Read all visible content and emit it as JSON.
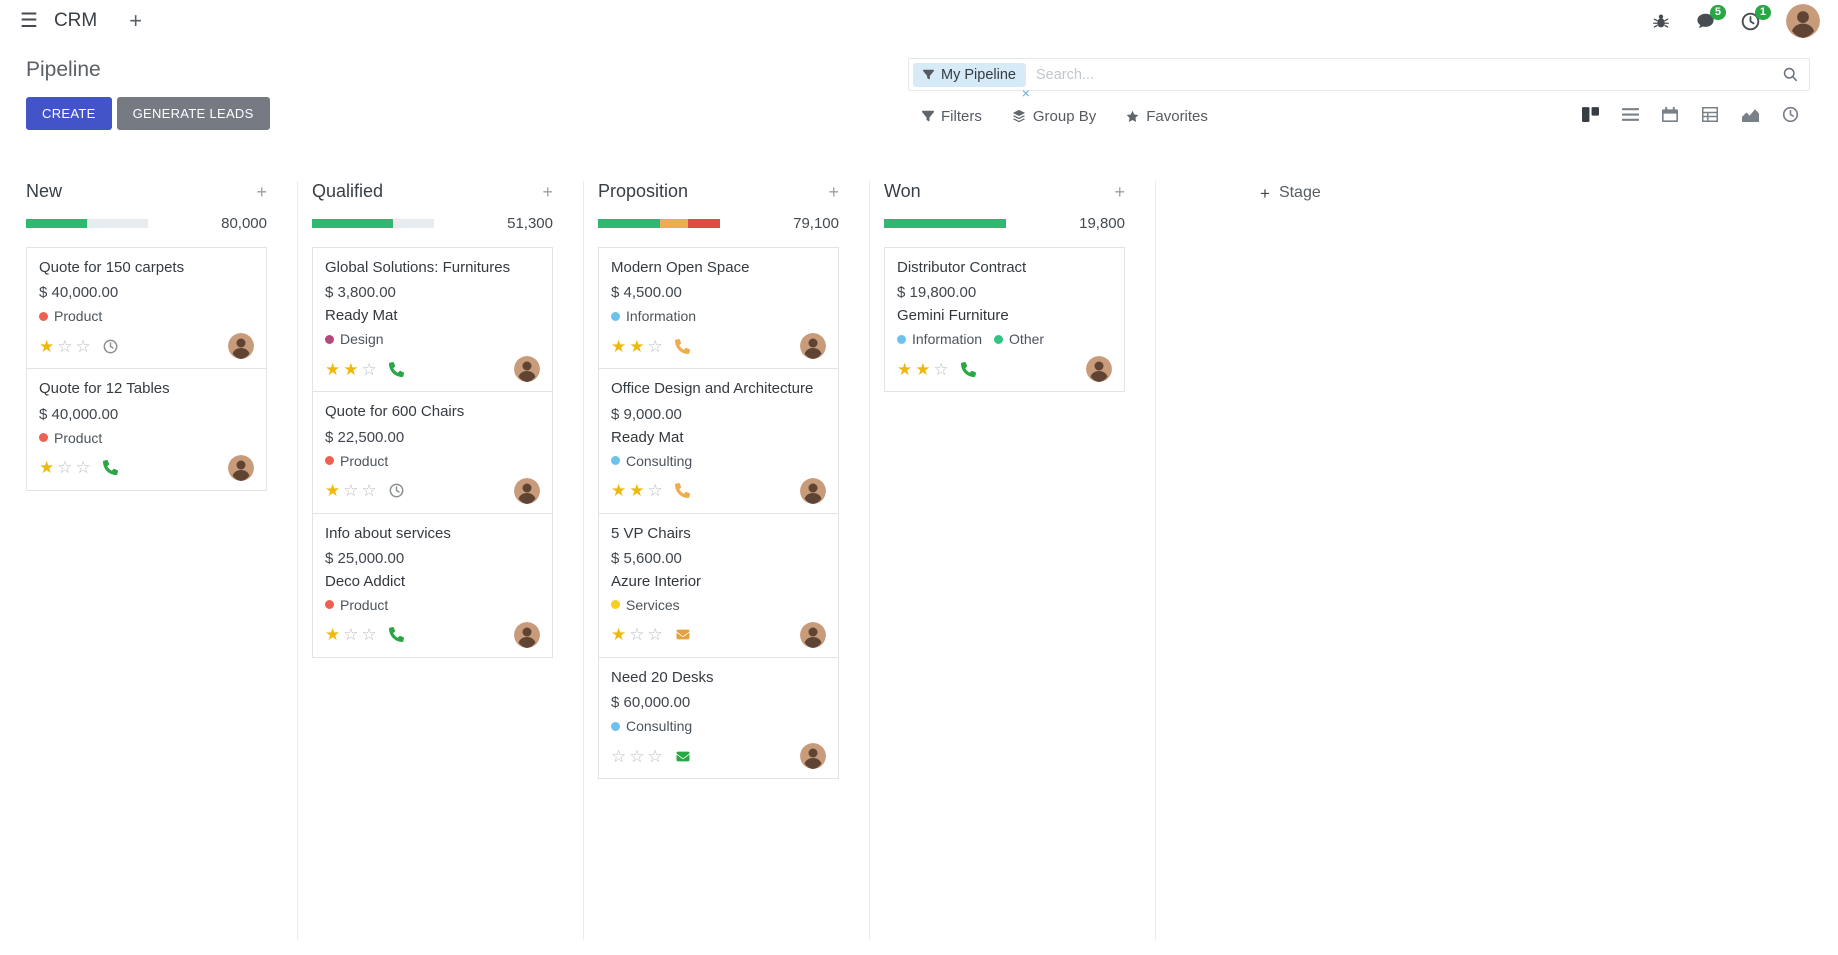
{
  "glyphs": {
    "hamburger": "☰",
    "plus": "+",
    "close": "×",
    "star_filled": "★",
    "star_empty": "☆"
  },
  "colors": {
    "primary": "#4353c8",
    "success": "#2eb872",
    "warning": "#f0ad4e",
    "danger": "#e04b43",
    "badge": "#28a745",
    "star_filled": "#efb810",
    "star_empty": "#b9bdc1"
  },
  "navbar": {
    "app_name": "CRM",
    "chat_badge": "5",
    "activity_badge": "1"
  },
  "control_panel": {
    "title": "Pipeline",
    "create_label": "CREATE",
    "generate_leads_label": "GENERATE LEADS",
    "search": {
      "facet_label": "My Pipeline",
      "placeholder": "Search..."
    },
    "menus": {
      "filters": "Filters",
      "group_by": "Group By",
      "favorites": "Favorites"
    }
  },
  "kanban": {
    "add_stage_label": "Stage",
    "stars_per_card": 3,
    "columns": [
      {
        "name": "New",
        "total": "80,000",
        "progress": [
          {
            "kind": "success",
            "pct": 50
          }
        ],
        "cards": [
          {
            "title": "Quote for 150 carpets",
            "amount": "$ 40,000.00",
            "partner": "",
            "tags": [
              {
                "label": "Product",
                "color": "#f06050"
              }
            ],
            "stars": 1,
            "activity": {
              "type": "clock",
              "color": "#8a8f94"
            }
          },
          {
            "title": "Quote for 12 Tables",
            "amount": "$ 40,000.00",
            "partner": "",
            "tags": [
              {
                "label": "Product",
                "color": "#f06050"
              }
            ],
            "stars": 1,
            "activity": {
              "type": "phone",
              "color": "#28a745"
            }
          }
        ]
      },
      {
        "name": "Qualified",
        "total": "51,300",
        "progress": [
          {
            "kind": "success",
            "pct": 66
          }
        ],
        "cards": [
          {
            "title": "Global Solutions: Furnitures",
            "amount": "$ 3,800.00",
            "partner": "Ready Mat",
            "tags": [
              {
                "label": "Design",
                "color": "#b5477d"
              }
            ],
            "stars": 2,
            "activity": {
              "type": "phone",
              "color": "#28a745"
            }
          },
          {
            "title": "Quote for 600 Chairs",
            "amount": "$ 22,500.00",
            "partner": "",
            "tags": [
              {
                "label": "Product",
                "color": "#f06050"
              }
            ],
            "stars": 1,
            "activity": {
              "type": "clock",
              "color": "#8a8f94"
            }
          },
          {
            "title": "Info about services",
            "amount": "$ 25,000.00",
            "partner": "Deco Addict",
            "tags": [
              {
                "label": "Product",
                "color": "#f06050"
              }
            ],
            "stars": 1,
            "activity": {
              "type": "phone",
              "color": "#28a745"
            }
          }
        ]
      },
      {
        "name": "Proposition",
        "total": "79,100",
        "progress": [
          {
            "kind": "success",
            "pct": 51
          },
          {
            "kind": "warning",
            "pct": 23
          },
          {
            "kind": "danger",
            "pct": 26
          }
        ],
        "cards": [
          {
            "title": "Modern Open Space",
            "amount": "$ 4,500.00",
            "partner": "",
            "tags": [
              {
                "label": "Information",
                "color": "#6cc1ed"
              }
            ],
            "stars": 2,
            "activity": {
              "type": "phone",
              "color": "#f0ad4e"
            }
          },
          {
            "title": "Office Design and Architecture",
            "amount": "$ 9,000.00",
            "partner": "Ready Mat",
            "tags": [
              {
                "label": "Consulting",
                "color": "#6cc1ed"
              }
            ],
            "stars": 2,
            "activity": {
              "type": "phone",
              "color": "#f0ad4e"
            }
          },
          {
            "title": "5 VP Chairs",
            "amount": "$ 5,600.00",
            "partner": "Azure Interior",
            "tags": [
              {
                "label": "Services",
                "color": "#f7cd1f"
              }
            ],
            "stars": 1,
            "activity": {
              "type": "mail",
              "color": "#e4a23c"
            }
          },
          {
            "title": "Need 20 Desks",
            "amount": "$ 60,000.00",
            "partner": "",
            "tags": [
              {
                "label": "Consulting",
                "color": "#6cc1ed"
              }
            ],
            "stars": 0,
            "activity": {
              "type": "mail",
              "color": "#28a745"
            }
          }
        ]
      },
      {
        "name": "Won",
        "total": "19,800",
        "progress": [
          {
            "kind": "success",
            "pct": 100
          }
        ],
        "cards": [
          {
            "title": "Distributor Contract",
            "amount": "$ 19,800.00",
            "partner": "Gemini Furniture",
            "tags": [
              {
                "label": "Information",
                "color": "#6cc1ed"
              },
              {
                "label": "Other",
                "color": "#30c381"
              }
            ],
            "stars": 2,
            "activity": {
              "type": "phone",
              "color": "#28a745"
            }
          }
        ]
      }
    ]
  }
}
